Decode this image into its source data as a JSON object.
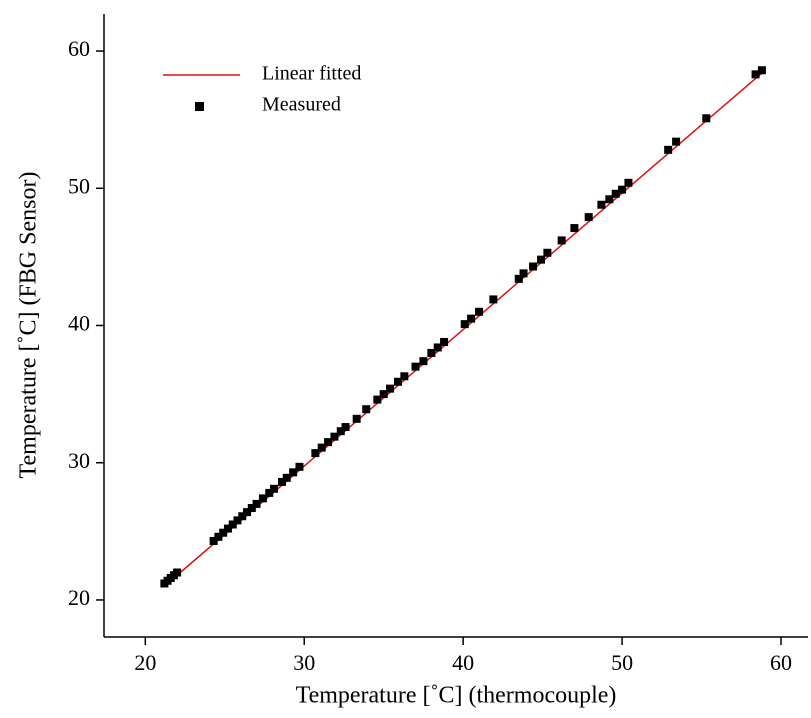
{
  "chart_data": {
    "type": "scatter",
    "xlabel": "Temperature [˚C] (thermocouple)",
    "ylabel": "Temperature [˚C] (FBG Sensor)",
    "xlim": [
      17.4,
      61.7
    ],
    "ylim": [
      17.3,
      62.7
    ],
    "xticks": [
      20,
      30,
      40,
      50,
      60
    ],
    "yticks": [
      20,
      30,
      40,
      50,
      60
    ],
    "legend": "upper left",
    "series": [
      {
        "name": "Linear fitted",
        "color": "#e01010",
        "mode": "line",
        "x": [
          22.2,
          58.8
        ],
        "values": [
          22.0,
          58.4
        ]
      },
      {
        "name": "Measured",
        "color": "#000000",
        "mode": "markers",
        "x": [
          21.2,
          21.4,
          21.6,
          21.8,
          22.0,
          24.3,
          24.6,
          24.9,
          25.2,
          25.5,
          25.8,
          26.1,
          26.4,
          26.7,
          27.0,
          27.4,
          27.8,
          28.1,
          28.6,
          28.9,
          29.3,
          29.7,
          30.7,
          31.1,
          31.5,
          31.9,
          32.3,
          32.6,
          33.3,
          33.9,
          34.6,
          35.0,
          35.4,
          35.9,
          36.3,
          37.0,
          37.5,
          38.0,
          38.4,
          38.8,
          40.1,
          40.5,
          41.0,
          41.9,
          43.5,
          43.8,
          44.4,
          44.9,
          45.3,
          46.2,
          47.0,
          47.9,
          48.7,
          49.2,
          49.6,
          50.0,
          50.4,
          52.9,
          53.4,
          55.3,
          58.4,
          58.8
        ],
        "values": [
          21.2,
          21.4,
          21.6,
          21.8,
          22.0,
          24.3,
          24.6,
          24.9,
          25.2,
          25.5,
          25.8,
          26.1,
          26.4,
          26.7,
          27.0,
          27.4,
          27.8,
          28.1,
          28.6,
          28.9,
          29.3,
          29.7,
          30.7,
          31.1,
          31.5,
          31.9,
          32.3,
          32.6,
          33.2,
          33.9,
          34.6,
          35.0,
          35.4,
          35.9,
          36.3,
          37.0,
          37.4,
          38.0,
          38.4,
          38.8,
          40.1,
          40.5,
          41.0,
          41.9,
          43.4,
          43.8,
          44.3,
          44.8,
          45.3,
          46.2,
          47.1,
          47.9,
          48.8,
          49.2,
          49.6,
          49.9,
          50.4,
          52.8,
          53.4,
          55.1,
          58.3,
          58.6
        ]
      }
    ]
  }
}
